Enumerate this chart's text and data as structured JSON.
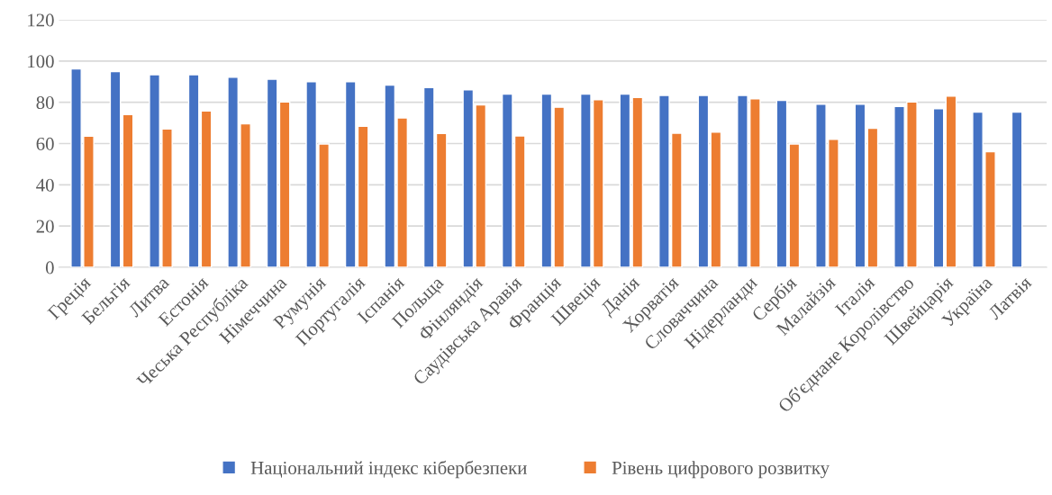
{
  "chart_data": {
    "type": "bar",
    "categories": [
      "Греція",
      "Бельгія",
      "Литва",
      "Естонія",
      "Чеська Республіка",
      "Німеччина",
      "Румунія",
      "Португалія",
      "Іспанія",
      "Польща",
      "Фінляндія",
      "Саудівська Аравія",
      "Франція",
      "Швеція",
      "Данія",
      "Хорватія",
      "Словаччина",
      "Нідерланди",
      "Сербія",
      "Малайзія",
      "Італія",
      "Об'єднане Королівство",
      "Швейцарія",
      "Україна",
      "Латвія"
    ],
    "series": [
      {
        "name": "Національний індекс кібербезпеки",
        "color": "#4472c4",
        "values": [
          96.2,
          94.9,
          93.4,
          93.4,
          92.2,
          91.2,
          90.0,
          90.0,
          88.3,
          87.1,
          86.1,
          84.0,
          84.0,
          84.0,
          84.0,
          83.3,
          83.3,
          83.3,
          80.9,
          79.1,
          79.1,
          78.0,
          76.9,
          75.2,
          75.2
        ]
      },
      {
        "name": "Рівень цифрового розвитку",
        "color": "#ed7d31",
        "values": [
          63.6,
          74.1,
          67.1,
          75.8,
          69.6,
          80.2,
          59.8,
          68.4,
          72.4,
          64.9,
          78.7,
          63.7,
          77.6,
          81.3,
          82.3,
          65.0,
          65.5,
          81.7,
          59.8,
          62.0,
          67.4,
          80.2,
          83.0,
          56.1,
          null
        ]
      }
    ],
    "ylim": [
      0,
      120
    ],
    "yticks": [
      0,
      20,
      40,
      60,
      80,
      100,
      120
    ],
    "grid": "y",
    "legend": "bottom"
  }
}
